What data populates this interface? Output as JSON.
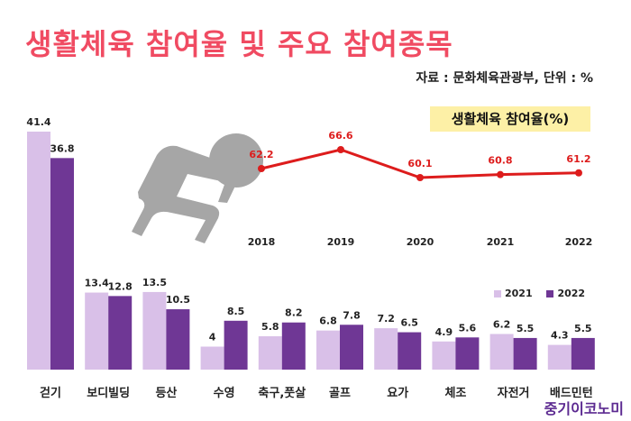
{
  "title": "생활체육 참여율 및 주요 참여종목",
  "source": "자료 : 문화체육관광부, 단위 : %",
  "brand": "중기이코노미",
  "colors": {
    "title": "#f04b62",
    "series_2021": "#d9c0e8",
    "series_2022": "#6f3795",
    "line": "#dd1c1c",
    "icon": "#a6a6a6",
    "inset_label_bg": "#fdf0a6"
  },
  "chart_data": [
    {
      "type": "bar",
      "categories": [
        "걷기",
        "보디빌딩",
        "등산",
        "수영",
        "축구,풋살",
        "골프",
        "요가",
        "체조",
        "자전거",
        "배드민턴"
      ],
      "series": [
        {
          "name": "2021",
          "values": [
            41.4,
            13.4,
            13.5,
            4,
            5.8,
            6.8,
            7.2,
            4.9,
            6.2,
            4.3
          ]
        },
        {
          "name": "2022",
          "values": [
            36.8,
            12.8,
            10.5,
            8.5,
            8.2,
            7.8,
            6.5,
            5.6,
            5.5,
            5.5
          ]
        }
      ],
      "value_labels": {
        "2021": [
          "41.4",
          "13.4",
          "13.5",
          "4",
          "5.8",
          "6.8",
          "7.2",
          "4.9",
          "6.2",
          "4.3"
        ],
        "2022": [
          "36.8",
          "12.8",
          "10.5",
          "8.5",
          "8.2",
          "7.8",
          "6.5",
          "5.6",
          "5.5",
          "5.5"
        ]
      },
      "legend": [
        "2021",
        "2022"
      ],
      "legend_position": "bottom-right",
      "ylim": [
        0,
        45
      ],
      "grid": false
    },
    {
      "type": "line",
      "title": "생활체육 참여율(%)",
      "x": [
        "2018",
        "2019",
        "2020",
        "2021",
        "2022"
      ],
      "values": [
        62.2,
        66.6,
        60.1,
        60.8,
        61.2
      ],
      "value_labels": [
        "62.2",
        "66.6",
        "60.1",
        "60.8",
        "61.2"
      ],
      "ylim": [
        55,
        70
      ],
      "grid": false
    }
  ]
}
